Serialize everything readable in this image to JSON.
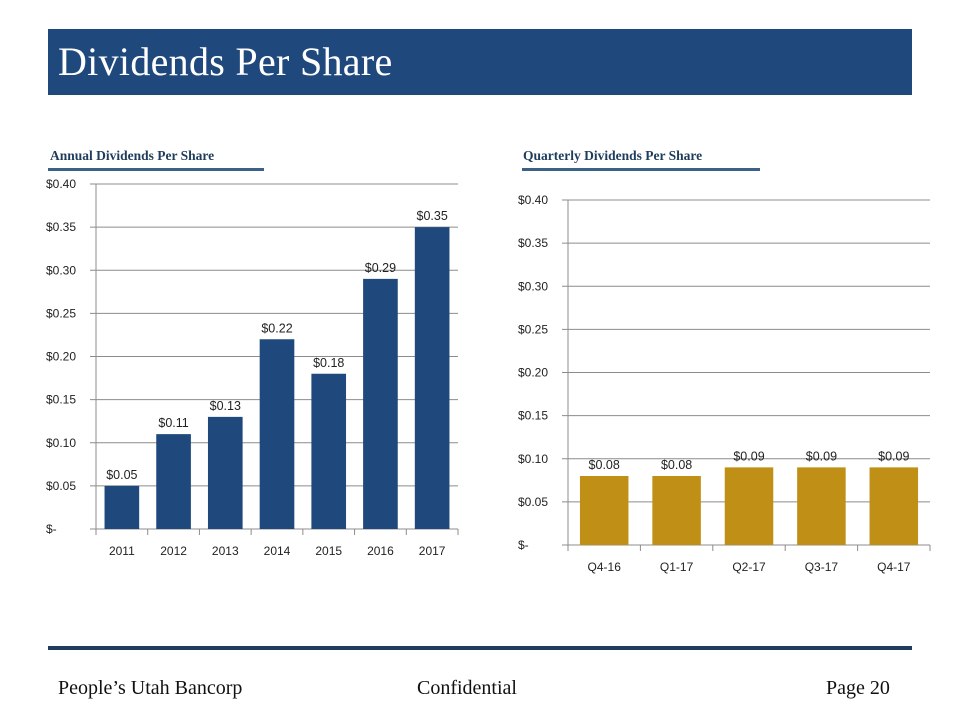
{
  "slide": {
    "title": "Dividends Per Share",
    "footer": {
      "company": "People’s Utah Bancorp",
      "classification": "Confidential",
      "page": "Page 20"
    },
    "colors": {
      "title_bar": "#1f497d",
      "annual_bars": "#1f497d",
      "quarterly_bars": "#bf9015"
    }
  },
  "chart_data": [
    {
      "type": "bar",
      "title": "Annual  Dividends Per Share",
      "xlabel": "",
      "ylabel": "",
      "categories": [
        "2011",
        "2012",
        "2013",
        "2014",
        "2015",
        "2016",
        "2017"
      ],
      "values": [
        0.05,
        0.11,
        0.13,
        0.22,
        0.18,
        0.29,
        0.35
      ],
      "data_labels": [
        "$0.05",
        "$0.11",
        "$0.13",
        "$0.22",
        "$0.18",
        "$0.29",
        "$0.35"
      ],
      "ylim": [
        0,
        0.4
      ],
      "yticks": [
        0,
        0.05,
        0.1,
        0.15,
        0.2,
        0.25,
        0.3,
        0.35,
        0.4
      ],
      "ytick_labels": [
        "$-",
        "$0.05",
        "$0.10",
        "$0.15",
        "$0.20",
        "$0.25",
        "$0.30",
        "$0.35",
        "$0.40"
      ],
      "grid": true,
      "legend": "none",
      "color": "#1f497d"
    },
    {
      "type": "bar",
      "title": "Quarterly Dividends Per Share",
      "xlabel": "",
      "ylabel": "",
      "categories": [
        "Q4-16",
        "Q1-17",
        "Q2-17",
        "Q3-17",
        "Q4-17"
      ],
      "values": [
        0.08,
        0.08,
        0.09,
        0.09,
        0.09
      ],
      "data_labels": [
        "$0.08",
        "$0.08",
        "$0.09",
        "$0.09",
        "$0.09"
      ],
      "ylim": [
        0,
        0.4
      ],
      "yticks": [
        0,
        0.05,
        0.1,
        0.15,
        0.2,
        0.25,
        0.3,
        0.35,
        0.4
      ],
      "ytick_labels": [
        "$-",
        "$0.05",
        "$0.10",
        "$0.15",
        "$0.20",
        "$0.25",
        "$0.30",
        "$0.35",
        "$0.40"
      ],
      "grid": true,
      "legend": "none",
      "color": "#bf9015"
    }
  ]
}
